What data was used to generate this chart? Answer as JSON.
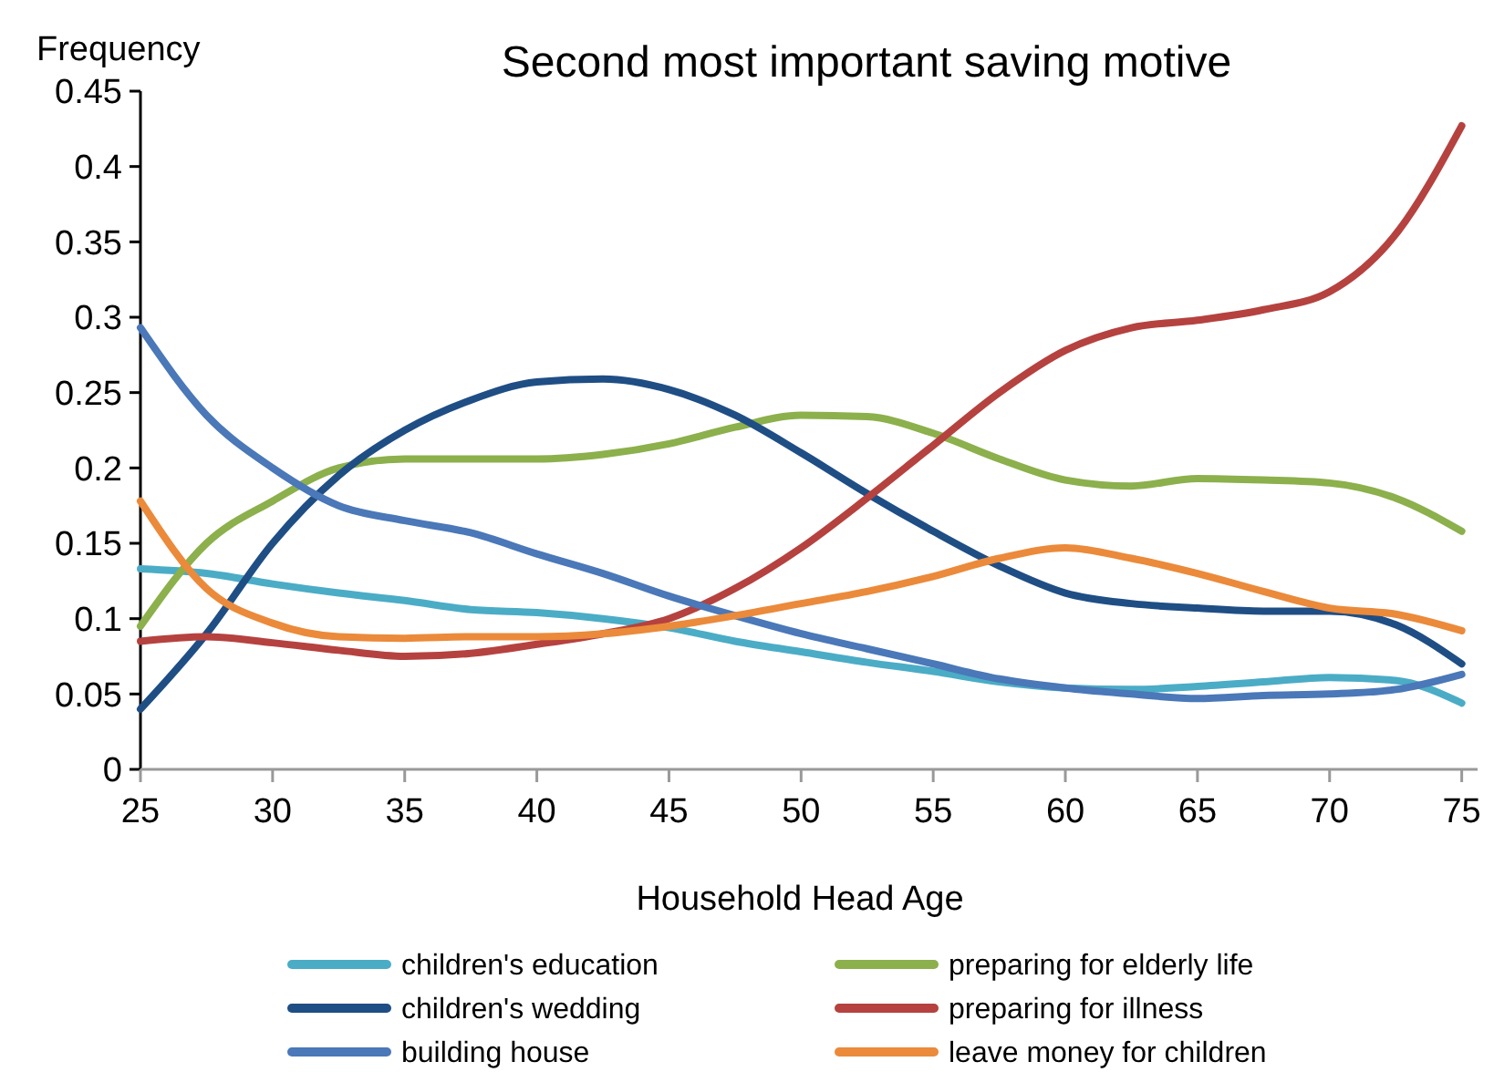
{
  "chart_data": {
    "type": "line",
    "title": "Second most important saving motive",
    "xlabel": "Household Head Age",
    "ylabel": "Frequency",
    "x": [
      25,
      27.5,
      30,
      32.5,
      35,
      37.5,
      40,
      42.5,
      45,
      47.5,
      50,
      52.5,
      55,
      57.5,
      60,
      62.5,
      65,
      67.5,
      70,
      72.5,
      75
    ],
    "xlim": [
      25,
      75.6
    ],
    "xticks": [
      25,
      30,
      35,
      40,
      45,
      50,
      55,
      60,
      65,
      70,
      75
    ],
    "ylim": [
      0,
      0.45
    ],
    "yticks": [
      0,
      0.05,
      0.1,
      0.15,
      0.2,
      0.25,
      0.3,
      0.35,
      0.4,
      0.45
    ],
    "grid": false,
    "legend": "bottom",
    "marker": "none",
    "line_style": "solid",
    "series": [
      {
        "name": "children's education",
        "color": "#4bacc6",
        "values": [
          0.133,
          0.13,
          0.123,
          0.117,
          0.112,
          0.106,
          0.104,
          0.1,
          0.094,
          0.085,
          0.078,
          0.071,
          0.065,
          0.058,
          0.054,
          0.053,
          0.055,
          0.058,
          0.061,
          0.059,
          0.044
        ]
      },
      {
        "name": "preparing for elderly life",
        "color": "#8cb04c",
        "values": [
          0.095,
          0.15,
          0.178,
          0.2,
          0.206,
          0.206,
          0.206,
          0.209,
          0.216,
          0.227,
          0.235,
          0.234,
          0.223,
          0.206,
          0.192,
          0.188,
          0.193,
          0.192,
          0.19,
          0.18,
          0.158
        ]
      },
      {
        "name": "children's wedding",
        "color": "#1f4e85",
        "values": [
          0.04,
          0.09,
          0.15,
          0.195,
          0.225,
          0.245,
          0.257,
          0.259,
          0.252,
          0.235,
          0.21,
          0.183,
          0.158,
          0.135,
          0.117,
          0.11,
          0.107,
          0.105,
          0.105,
          0.096,
          0.07
        ]
      },
      {
        "name": "preparing for illness",
        "color": "#b5423f",
        "values": [
          0.085,
          0.088,
          0.084,
          0.079,
          0.075,
          0.077,
          0.083,
          0.09,
          0.1,
          0.12,
          0.147,
          0.18,
          0.215,
          0.25,
          0.278,
          0.293,
          0.298,
          0.305,
          0.317,
          0.355,
          0.427
        ]
      },
      {
        "name": "building house",
        "color": "#4a78b8",
        "values": [
          0.293,
          0.235,
          0.2,
          0.175,
          0.165,
          0.157,
          0.143,
          0.13,
          0.115,
          0.102,
          0.09,
          0.08,
          0.07,
          0.06,
          0.054,
          0.05,
          0.047,
          0.049,
          0.05,
          0.053,
          0.063
        ]
      },
      {
        "name": "leave money for children",
        "color": "#eb8a3a",
        "values": [
          0.178,
          0.12,
          0.097,
          0.088,
          0.087,
          0.088,
          0.088,
          0.09,
          0.095,
          0.102,
          0.11,
          0.118,
          0.128,
          0.14,
          0.147,
          0.14,
          0.13,
          0.118,
          0.107,
          0.103,
          0.092
        ]
      }
    ]
  }
}
